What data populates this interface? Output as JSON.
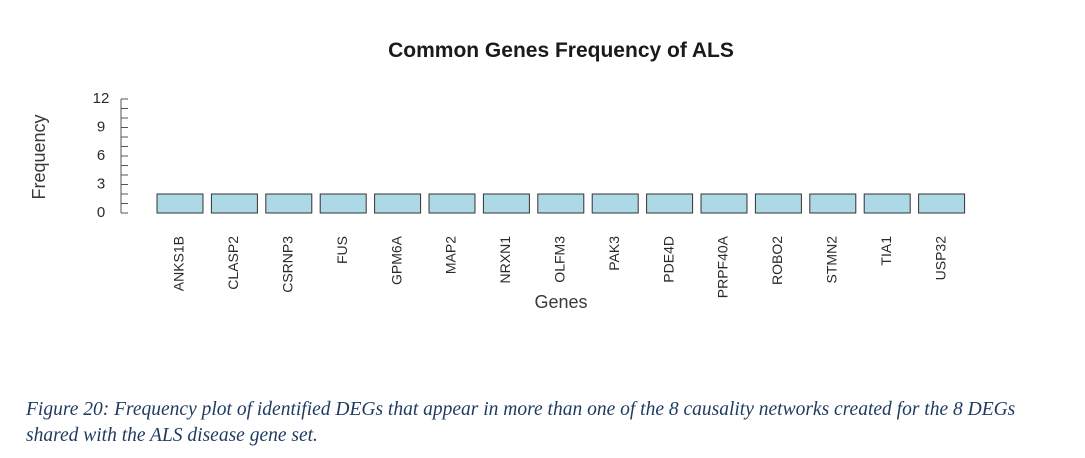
{
  "chart_data": {
    "type": "bar",
    "title": "Common Genes Frequency of ALS",
    "xlabel": "Genes",
    "ylabel": "Frequency",
    "categories": [
      "ANKS1B",
      "CLASP2",
      "CSRNP3",
      "FUS",
      "GPM6A",
      "MAP2",
      "NRXN1",
      "OLFM3",
      "PAK3",
      "PDE4D",
      "PRPF40A",
      "ROBO2",
      "STMN2",
      "TIA1",
      "USP32"
    ],
    "values": [
      2,
      2,
      2,
      2,
      2,
      2,
      2,
      2,
      2,
      2,
      2,
      2,
      2,
      2,
      2
    ],
    "ylim": [
      0,
      12
    ],
    "yticks": [
      0,
      3,
      6,
      9,
      12
    ],
    "grid": false,
    "bar_color": "#add8e6",
    "bar_edge_color": "#333333"
  },
  "caption": "Figure 20: Frequency plot of identified DEGs that appear in more than one of the 8 causality networks created for the 8 DEGs shared with the ALS disease gene set."
}
